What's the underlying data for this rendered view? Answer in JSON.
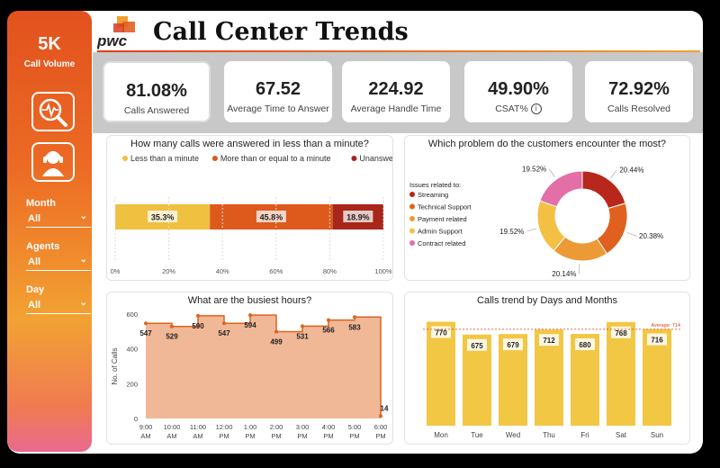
{
  "sidebar": {
    "volume_value": "5K",
    "volume_label": "Call Volume",
    "nav_icons": [
      "analytics-search-icon",
      "headset-agent-icon"
    ],
    "filters": [
      {
        "label": "Month",
        "value": "All"
      },
      {
        "label": "Agents",
        "value": "All"
      },
      {
        "label": "Day",
        "value": "All"
      }
    ]
  },
  "header": {
    "logo_text": "pwc",
    "title": "Call Center Trends"
  },
  "kpis": [
    {
      "value": "81.08%",
      "label": "Calls Answered"
    },
    {
      "value": "67.52",
      "label": "Average Time to Answer"
    },
    {
      "value": "224.92",
      "label": "Average Handle Time"
    },
    {
      "value": "49.90%",
      "label": "CSAT%"
    },
    {
      "value": "72.92%",
      "label": "Calls Resolved"
    }
  ],
  "chart_data": [
    {
      "type": "bar",
      "orientation": "horizontal-stacked-100",
      "title": "How many calls were answered in less than a minute?",
      "series": [
        {
          "name": "Less than a minute",
          "value": 35.3,
          "label": "35.3%",
          "color": "#f0c040"
        },
        {
          "name": "More than or equal to a minute",
          "value": 45.8,
          "label": "45.8%",
          "color": "#dd5a1c"
        },
        {
          "name": "Unanswered",
          "value": 18.9,
          "label": "18.9%",
          "color": "#a8261a"
        }
      ],
      "xticks": [
        "0%",
        "20%",
        "40%",
        "60%",
        "80%",
        "100%"
      ],
      "legend": "top"
    },
    {
      "type": "pie",
      "variant": "donut",
      "title": "Which problem do the customers encounter the most?",
      "legend_title": "Issues related to:",
      "slices": [
        {
          "name": "Streaming",
          "value": 20.44,
          "label": "20.44%",
          "color": "#b8271b"
        },
        {
          "name": "Technical Support",
          "value": 20.38,
          "label": "20.38%",
          "color": "#e0611f"
        },
        {
          "name": "Payment related",
          "value": 20.14,
          "label": "20.14%",
          "color": "#eb9a35"
        },
        {
          "name": "Admin Support",
          "value": 19.52,
          "label": "19.52%",
          "color": "#f3c044"
        },
        {
          "name": "Contract related",
          "value": 19.52,
          "label": "19.52%",
          "color": "#e36fa6"
        }
      ],
      "legend": "left"
    },
    {
      "type": "area",
      "title": "What are the busiest hours?",
      "ylabel": "No. of Calls",
      "ylim": [
        0,
        600
      ],
      "yticks": [
        "0",
        "200",
        "400",
        "600"
      ],
      "categories": [
        "9:00 AM",
        "10:00 AM",
        "11:00 AM",
        "12:00 PM",
        "1:00 PM",
        "2:00 PM",
        "3:00 PM",
        "4:00 PM",
        "5:00 PM",
        "6:00 PM"
      ],
      "values": [
        547,
        529,
        590,
        547,
        594,
        499,
        531,
        566,
        583,
        14
      ],
      "color": "#e0611f",
      "fill": "#f0b896",
      "step": true
    },
    {
      "type": "bar",
      "title": "Calls trend by Days and Months",
      "categories": [
        "Mon",
        "Tue",
        "Wed",
        "Thu",
        "Fri",
        "Sat",
        "Sun"
      ],
      "values": [
        770,
        675,
        679,
        712,
        680,
        768,
        716
      ],
      "color": "#f2c744",
      "average": 714,
      "average_label": "Average: 714",
      "ylim": [
        0,
        800
      ]
    }
  ]
}
